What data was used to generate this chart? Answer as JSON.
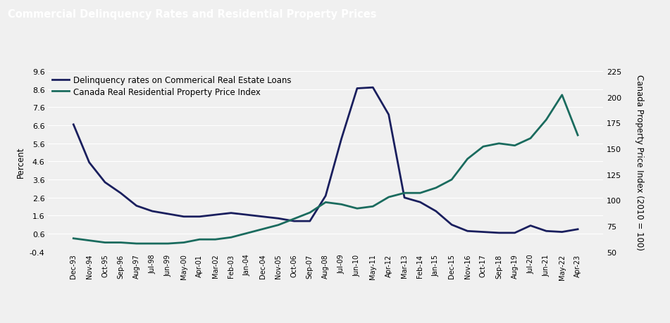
{
  "title": "Commercial Delinquency Rates and Residential Property Prices",
  "title_bg": "#484848",
  "title_color": "#ffffff",
  "ylabel_left": "Percent",
  "ylabel_right": "Canada Property Price Index (2010 = 100)",
  "ylim_left": [
    -0.4,
    9.6
  ],
  "ylim_right": [
    50,
    225
  ],
  "yticks_left": [
    -0.4,
    0.6,
    1.6,
    2.6,
    3.6,
    4.6,
    5.6,
    6.6,
    7.6,
    8.6,
    9.6
  ],
  "ytick_labels_left": [
    "-0.4",
    "0.6",
    "1.6",
    "2.6",
    "3.6",
    "4.6",
    "5.6",
    "6.6",
    "7.6",
    "8.6",
    "9.6"
  ],
  "yticks_right": [
    50,
    75,
    100,
    125,
    150,
    175,
    200,
    225
  ],
  "legend_label1": "Delinquency rates on Commerical Real Estate Loans",
  "legend_label2": "Canada Real Residential Property Price Index",
  "line1_color": "#1a1f5e",
  "line2_color": "#1a6b5e",
  "background_color": "#f0f0f0",
  "plot_bg": "#f0f0f0",
  "grid_color": "#ffffff",
  "xtick_labels": [
    "Dec-93",
    "Nov-94",
    "Oct-95",
    "Sep-96",
    "Aug-97",
    "Jul-98",
    "Jun-99",
    "May-00",
    "Apr-01",
    "Mar-02",
    "Feb-03",
    "Jan-04",
    "Dec-04",
    "Nov-05",
    "Oct-06",
    "Sep-07",
    "Aug-08",
    "Jul-09",
    "Jun-10",
    "May-11",
    "Apr-12",
    "Mar-13",
    "Feb-14",
    "Jan-15",
    "Dec-15",
    "Nov-16",
    "Oct-17",
    "Sep-18",
    "Aug-19",
    "Jul-20",
    "Jun-21",
    "May-22",
    "Apr-23"
  ],
  "delinquency_data": [
    6.65,
    4.55,
    3.45,
    2.85,
    2.15,
    1.85,
    1.7,
    1.55,
    1.55,
    1.65,
    1.75,
    1.65,
    1.55,
    1.45,
    1.3,
    1.3,
    2.7,
    5.85,
    8.65,
    8.7,
    7.2,
    2.6,
    2.35,
    1.85,
    1.1,
    0.75,
    0.7,
    0.65,
    0.65,
    1.05,
    0.75,
    0.7,
    0.85
  ],
  "property_data": [
    63,
    61,
    59,
    59,
    58,
    58,
    58,
    59,
    62,
    62,
    64,
    68,
    72,
    76,
    82,
    88,
    98,
    96,
    92,
    94,
    103,
    107,
    107,
    112,
    120,
    140,
    152,
    155,
    153,
    160,
    178,
    202,
    163
  ]
}
